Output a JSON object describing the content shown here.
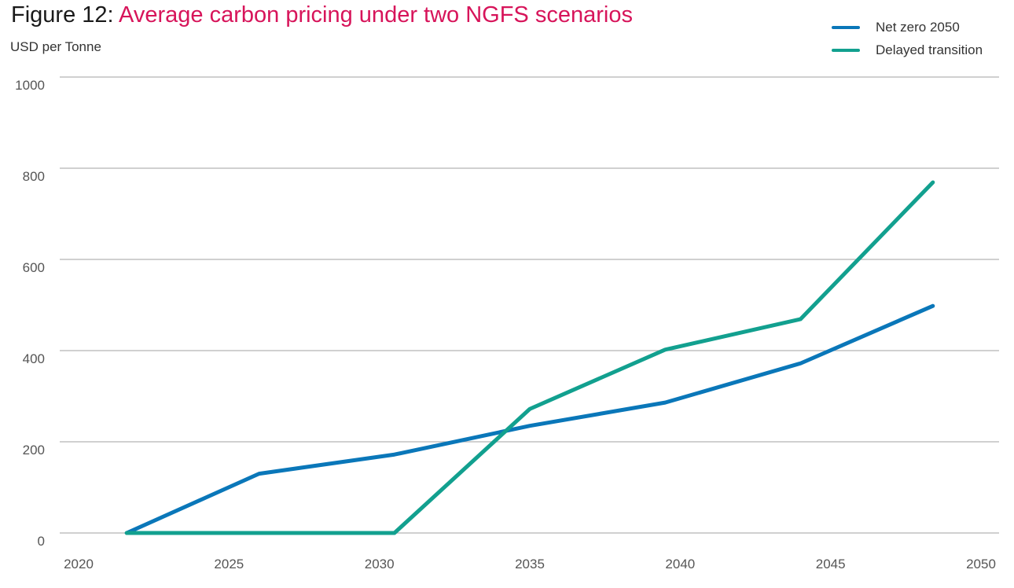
{
  "figure": {
    "prefix": "Figure 12:",
    "title": "Average carbon pricing under two NGFS scenarios"
  },
  "chart_data": {
    "type": "line",
    "title": "Figure 12: Average carbon pricing under two NGFS scenarios",
    "xlabel": "",
    "ylabel": "USD per Tonne",
    "xlim": [
      2020,
      2050
    ],
    "ylim": [
      0,
      1000
    ],
    "xticks": [
      2020,
      2025,
      2030,
      2035,
      2040,
      2045,
      2050
    ],
    "yticks": [
      0,
      200,
      400,
      600,
      800,
      1000
    ],
    "grid": "horizontal",
    "legend_position": "top-right",
    "x": [
      2021.6,
      2026,
      2030.5,
      2035,
      2039.5,
      2044,
      2048.4
    ],
    "series": [
      {
        "name": "Net zero 2050",
        "color": "#0a77b9",
        "values": [
          0,
          130,
          172,
          235,
          286,
          372,
          498
        ]
      },
      {
        "name": "Delayed transition",
        "color": "#12a08f",
        "values": [
          0,
          0,
          0,
          272,
          402,
          469,
          769
        ]
      }
    ]
  }
}
